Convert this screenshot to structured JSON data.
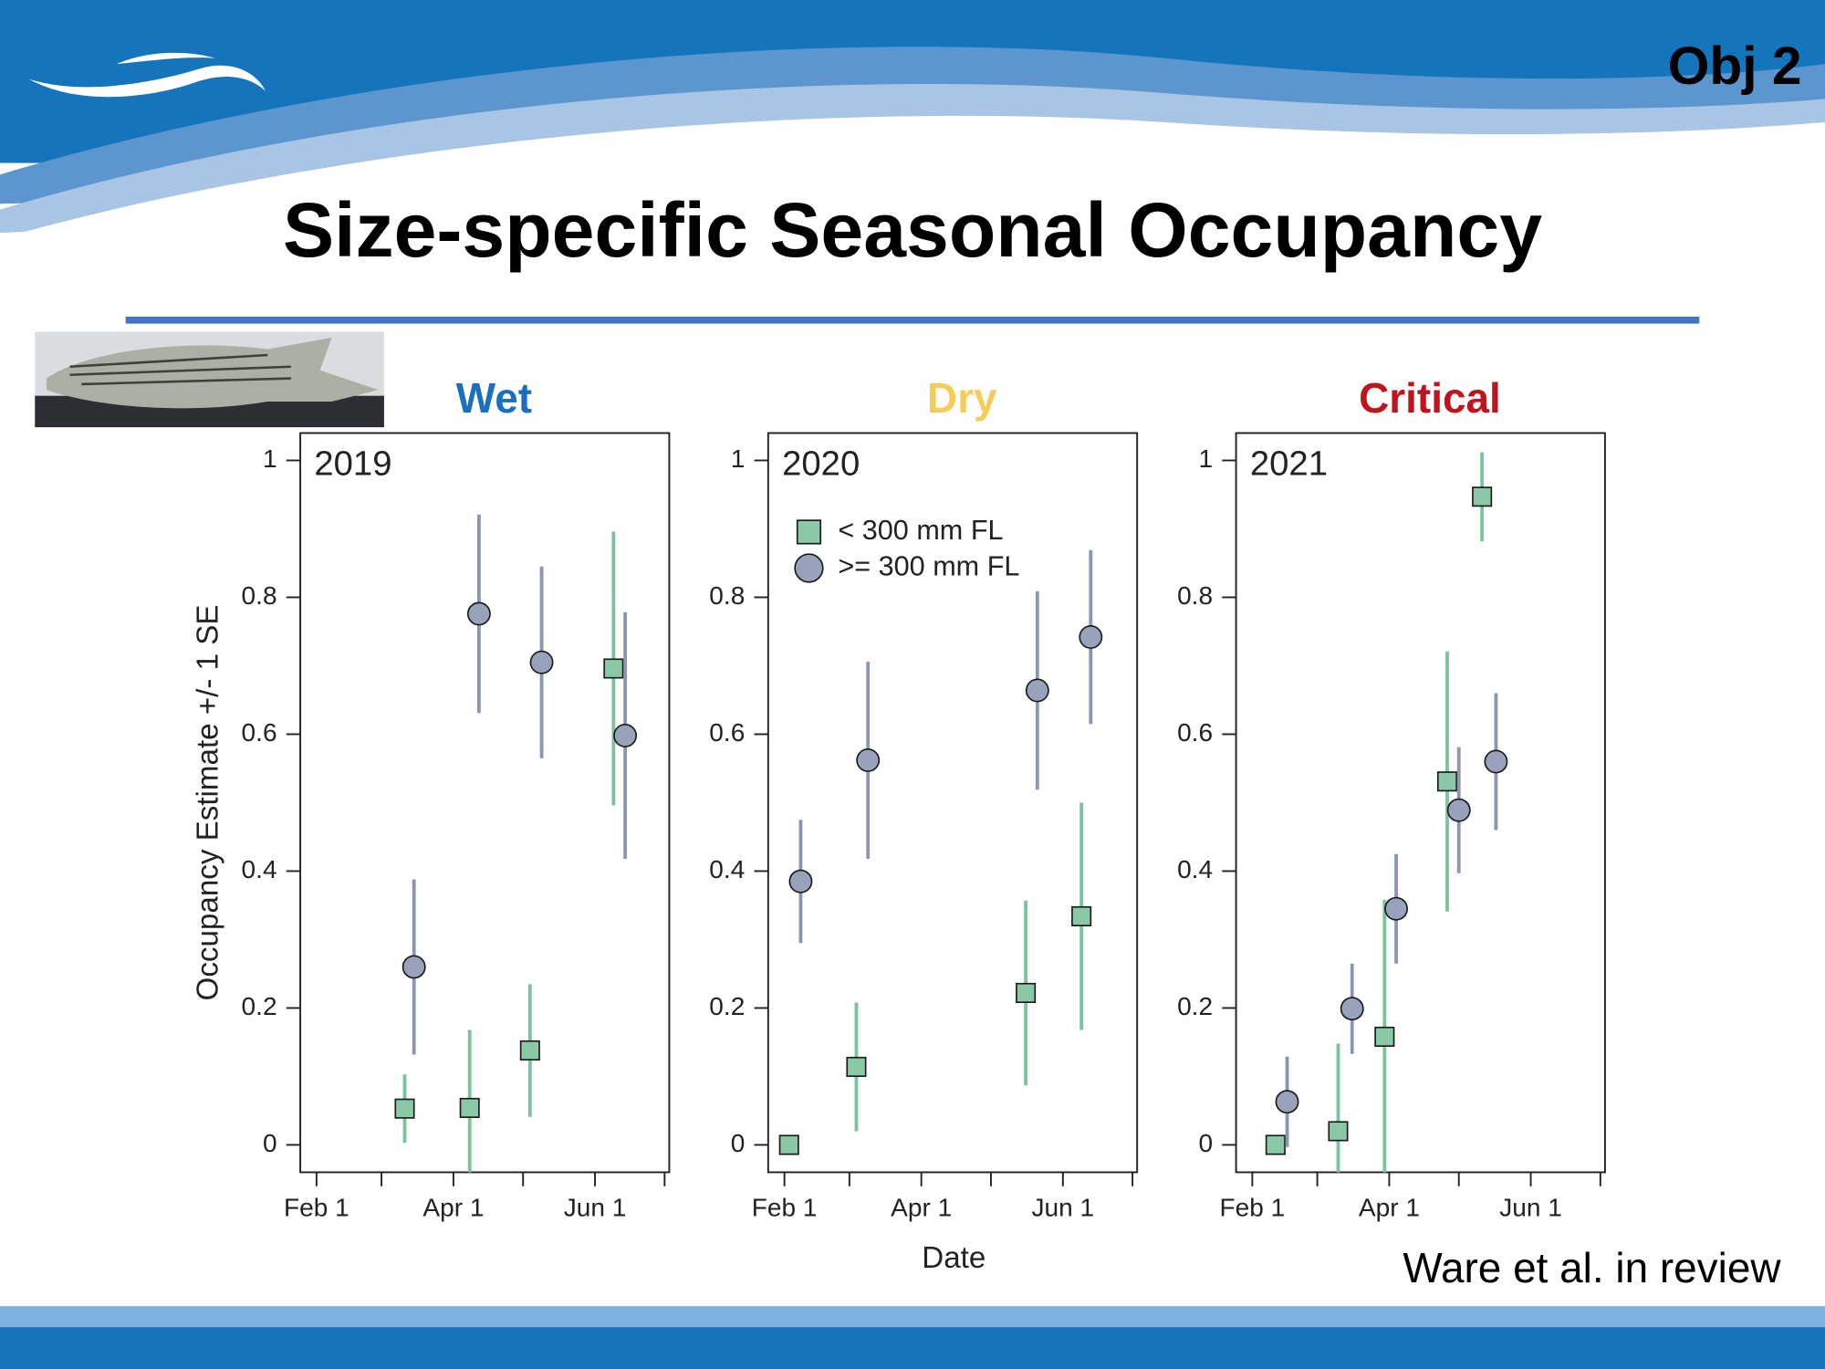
{
  "header": {
    "tag": "Obj 2",
    "title": "Size-specific Seasonal Occupancy"
  },
  "footer": {
    "citation": "Ware et al. in review"
  },
  "chart_data": [
    {
      "type": "scatter",
      "title": "Wet",
      "title_color": "#1a6fc0",
      "annotation": "2019",
      "y_label": "Occupancy Estimate +/- 1 SE",
      "xlim": [
        25,
        184
      ],
      "xticks": [
        {
          "value": 32,
          "label": "Feb 1"
        },
        {
          "value": 91,
          "label": "Apr 1"
        },
        {
          "value": 152,
          "label": "Jun 1"
        }
      ],
      "xminorticks": [
        60,
        121,
        182
      ],
      "ylim": [
        -0.04,
        1.04
      ],
      "yticks": [
        0,
        0.2,
        0.4,
        0.6,
        0.8,
        1
      ],
      "series": [
        {
          "marker": "square",
          "color": "#8ac8a6",
          "error_color": "#7cc39f",
          "x": [
            70,
            98,
            124,
            160
          ],
          "values": [
            0.053,
            0.054,
            0.138,
            0.696
          ],
          "errors": [
            0.05,
            0.114,
            0.097,
            0.2
          ]
        },
        {
          "marker": "circle",
          "color": "#98a2bb",
          "error_color": "#8b97b0",
          "x": [
            74,
            102,
            129,
            165
          ],
          "values": [
            0.26,
            0.776,
            0.705,
            0.598
          ],
          "errors": [
            0.128,
            0.145,
            0.14,
            0.18
          ]
        }
      ]
    },
    {
      "type": "scatter",
      "title": "Dry",
      "title_color": "#f5cc5a",
      "annotation": "2020",
      "x_label": "Date",
      "legend": "upper left",
      "xlim": [
        25,
        184
      ],
      "xticks": [
        {
          "value": 32,
          "label": "Feb 1"
        },
        {
          "value": 91,
          "label": "Apr 1"
        },
        {
          "value": 152,
          "label": "Jun 1"
        }
      ],
      "xminorticks": [
        60,
        121,
        182
      ],
      "ylim": [
        -0.04,
        1.04
      ],
      "yticks": [
        0,
        0.2,
        0.4,
        0.6,
        0.8,
        1
      ],
      "series": [
        {
          "name": "< 300 mm FL",
          "marker": "square",
          "color": "#8ac8a6",
          "error_color": "#7cc39f",
          "x": [
            34,
            63,
            136,
            160
          ],
          "values": [
            0,
            0.114,
            0.222,
            0.334
          ],
          "errors": [
            0,
            0.094,
            0.135,
            0.166
          ]
        },
        {
          "name": ">= 300 mm FL",
          "marker": "circle",
          "color": "#98a2bb",
          "error_color": "#8b97b0",
          "x": [
            39,
            68,
            141,
            164
          ],
          "values": [
            0.385,
            0.562,
            0.664,
            0.742
          ],
          "errors": [
            0.09,
            0.144,
            0.145,
            0.127
          ]
        }
      ]
    },
    {
      "type": "scatter",
      "title": "Critical",
      "title_color": "#c0141c",
      "annotation": "2021",
      "xlim": [
        25,
        184
      ],
      "xticks": [
        {
          "value": 32,
          "label": "Feb 1"
        },
        {
          "value": 91,
          "label": "Apr 1"
        },
        {
          "value": 152,
          "label": "Jun 1"
        }
      ],
      "xminorticks": [
        60,
        121,
        182
      ],
      "ylim": [
        -0.04,
        1.04
      ],
      "yticks": [
        0,
        0.2,
        0.4,
        0.6,
        0.8,
        1
      ],
      "series": [
        {
          "marker": "square",
          "color": "#8ac8a6",
          "error_color": "#7cc39f",
          "x": [
            42,
            69,
            89,
            116,
            131
          ],
          "values": [
            0,
            0.02,
            0.158,
            0.531,
            0.947
          ],
          "errors": [
            0,
            0.128,
            0.2,
            0.19,
            0.065
          ]
        },
        {
          "marker": "circle",
          "color": "#98a2bb",
          "error_color": "#8b97b0",
          "x": [
            47,
            75,
            94,
            121,
            137
          ],
          "values": [
            0.063,
            0.199,
            0.345,
            0.489,
            0.56
          ],
          "errors": [
            0.066,
            0.066,
            0.08,
            0.092,
            0.1
          ]
        }
      ]
    }
  ]
}
